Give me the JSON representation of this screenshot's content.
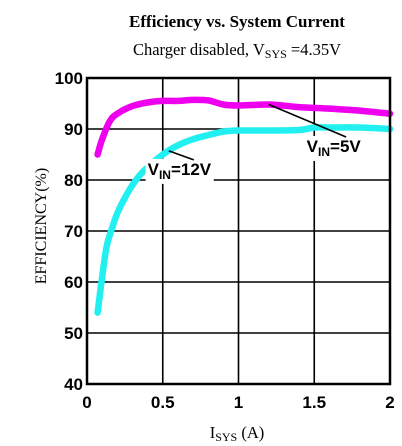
{
  "chart_data": {
    "type": "line",
    "title": "Efficiency vs. System Current",
    "subtitle": {
      "prefix": "Charger disabled, V",
      "sub": "SYS",
      "suffix": " =4.35V"
    },
    "xlabel": {
      "main": "I",
      "sub": "SYS",
      "suffix": " (A)"
    },
    "ylabel": "EFFICIENCY(%)",
    "xlim": [
      0,
      2
    ],
    "ylim": [
      40,
      100
    ],
    "xticks": [
      0,
      0.5,
      1,
      1.5,
      2
    ],
    "xtick_labels": [
      "0",
      "0.5",
      "1",
      "1.5",
      "2"
    ],
    "yticks": [
      40,
      50,
      60,
      70,
      80,
      90,
      100
    ],
    "ytick_labels": [
      "40",
      "50",
      "60",
      "70",
      "80",
      "90",
      "100"
    ],
    "grid": true,
    "series": [
      {
        "name": {
          "main": "V",
          "sub": "IN",
          "suffix": "=5V"
        },
        "color": "#ee00ee",
        "x": [
          0.07,
          0.1,
          0.15,
          0.2,
          0.3,
          0.4,
          0.5,
          0.6,
          0.7,
          0.8,
          0.9,
          1.0,
          1.2,
          1.4,
          1.6,
          1.8,
          2.0
        ],
        "y": [
          85.0,
          88.0,
          91.5,
          93.0,
          94.5,
          95.2,
          95.5,
          95.5,
          95.7,
          95.6,
          94.8,
          94.6,
          94.8,
          94.3,
          94.0,
          93.6,
          93.0
        ]
      },
      {
        "name": {
          "main": "V",
          "sub": "IN",
          "suffix": "=12V"
        },
        "color": "#22f0f0",
        "x": [
          0.07,
          0.1,
          0.13,
          0.17,
          0.2,
          0.25,
          0.3,
          0.35,
          0.4,
          0.5,
          0.6,
          0.7,
          0.8,
          0.9,
          1.0,
          1.2,
          1.4,
          1.5,
          1.6,
          1.8,
          2.0
        ],
        "y": [
          54.0,
          61.0,
          67.0,
          71.0,
          73.5,
          76.5,
          79.0,
          81.0,
          82.5,
          85.0,
          86.8,
          88.0,
          88.8,
          89.5,
          89.7,
          89.7,
          89.8,
          90.3,
          90.3,
          90.3,
          90.0
        ]
      }
    ],
    "annotations": [
      {
        "series": 1,
        "at_x": 0.54,
        "label_x": 0.4,
        "label_y": 81
      },
      {
        "series": 0,
        "at_x": 1.2,
        "label_x": 1.45,
        "label_y": 85.5
      }
    ]
  }
}
